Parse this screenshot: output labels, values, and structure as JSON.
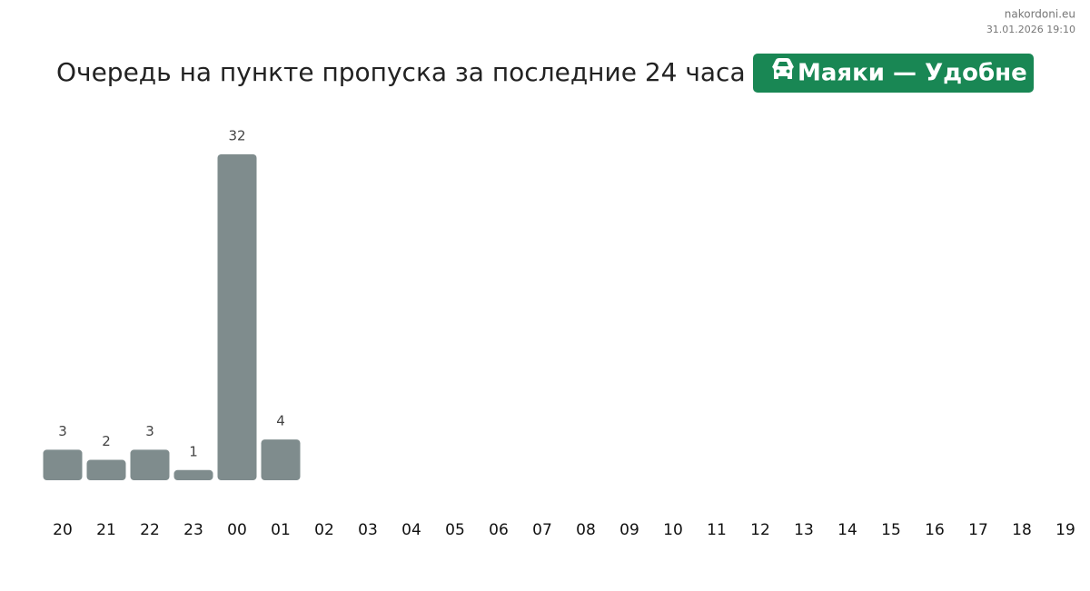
{
  "chart_data": {
    "type": "bar",
    "title": "Очередь на пункте пропуска за последние 24 часа",
    "badge": "Маяки — Удобне",
    "site": "nakordoni.eu",
    "timestamp": "31.01.2026 19:10",
    "color": "#7f8c8d",
    "badge_color": "#198754",
    "categories": [
      "20",
      "21",
      "22",
      "23",
      "00",
      "01",
      "02",
      "03",
      "04",
      "05",
      "06",
      "07",
      "08",
      "09",
      "10",
      "11",
      "12",
      "13",
      "14",
      "15",
      "16",
      "17",
      "18",
      "19"
    ],
    "values": [
      3,
      2,
      3,
      1,
      32,
      4,
      null,
      null,
      null,
      null,
      null,
      null,
      null,
      null,
      null,
      null,
      null,
      null,
      null,
      null,
      null,
      null,
      null,
      null
    ]
  }
}
